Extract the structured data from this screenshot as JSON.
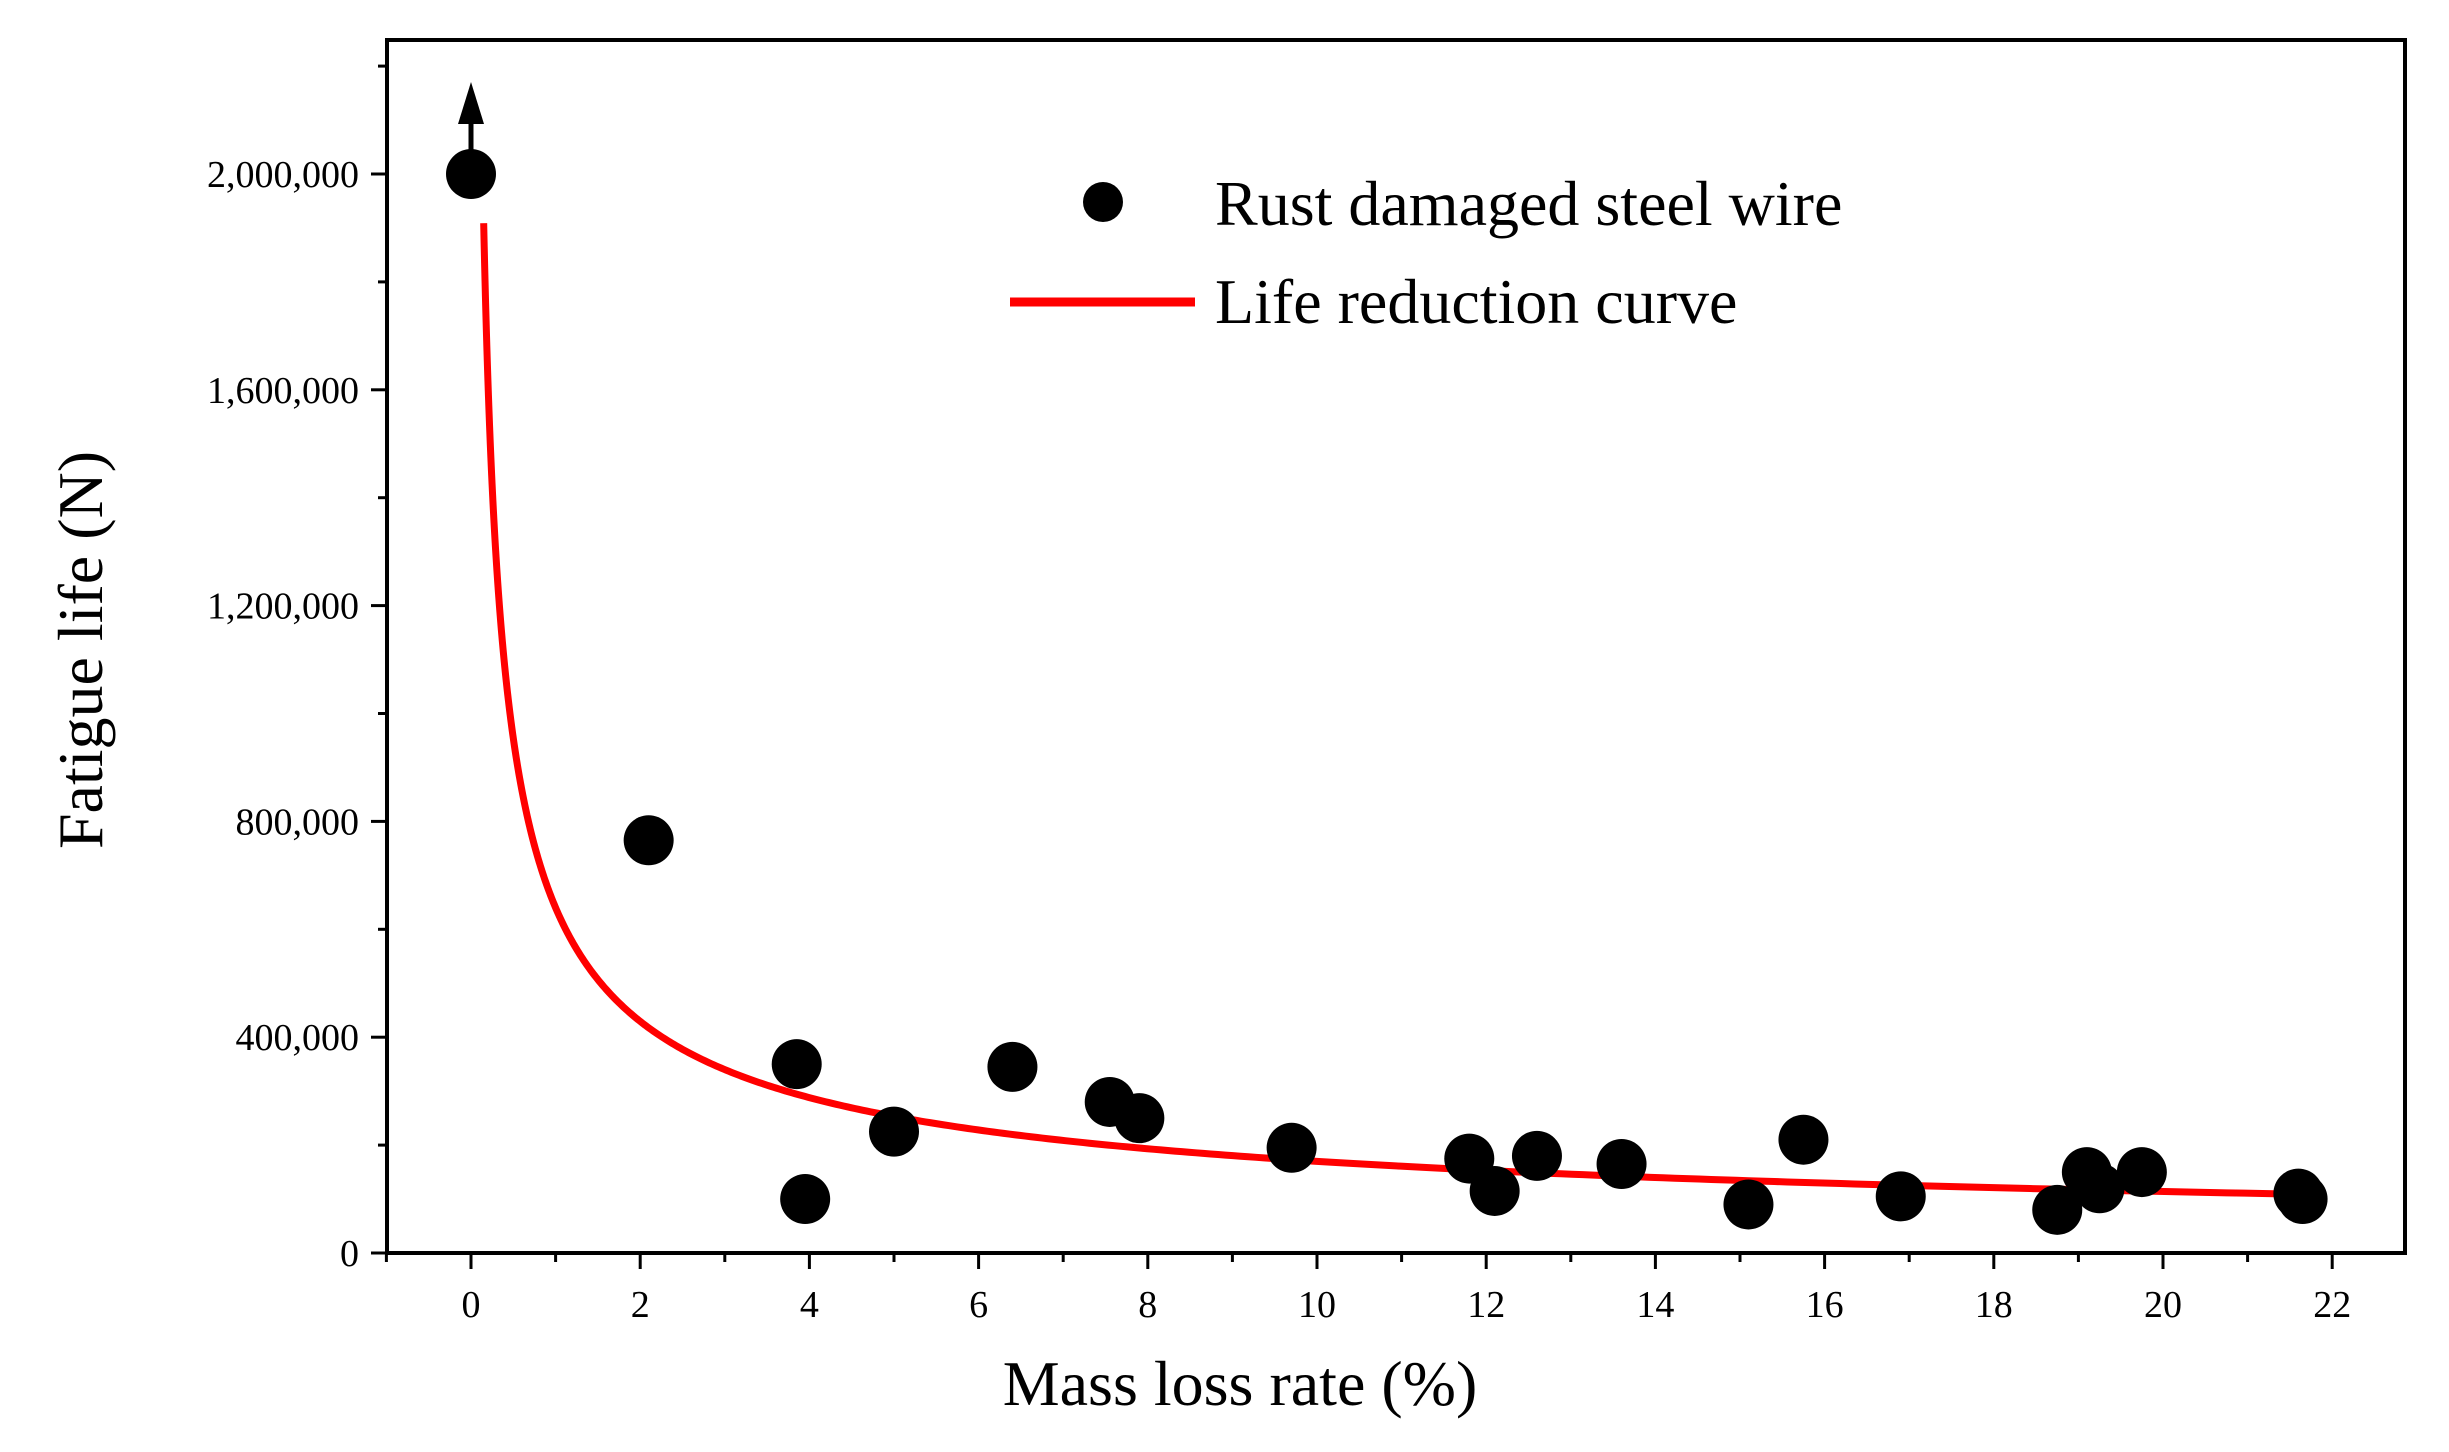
{
  "chart_data": {
    "type": "scatter",
    "title": "",
    "xlabel": "Mass loss rate (%)",
    "ylabel": "Fatigue life (N)",
    "xlim": [
      -1,
      22.5
    ],
    "ylim": [
      0,
      2250000
    ],
    "x_ticks": [
      0,
      2,
      4,
      6,
      8,
      10,
      12,
      14,
      16,
      18,
      20,
      22
    ],
    "x_tick_labels": [
      "0",
      "2",
      "4",
      "6",
      "8",
      "10",
      "12",
      "14",
      "16",
      "18",
      "20",
      "22"
    ],
    "y_ticks": [
      0,
      400000,
      800000,
      1200000,
      1600000,
      2000000
    ],
    "y_tick_labels": [
      "0",
      "400,000",
      "800,000",
      "1,200,000",
      "1,600,000",
      "2,000,000"
    ],
    "grid": false,
    "legend": {
      "position": "top-right",
      "entries": [
        "Rust damaged steel wire",
        "Life reduction curve"
      ]
    },
    "colors": {
      "points": "#000000",
      "curve": "#ff0000"
    },
    "annotations": [
      {
        "type": "arrow-up",
        "x": 0,
        "y": 2000000,
        "meaning": "run-out (did not fail)"
      }
    ],
    "series": [
      {
        "name": "Rust damaged steel wire",
        "kind": "scatter",
        "points": [
          {
            "x": 0.0,
            "y": 2000000
          },
          {
            "x": 2.1,
            "y": 765000
          },
          {
            "x": 3.85,
            "y": 350000
          },
          {
            "x": 3.95,
            "y": 100000
          },
          {
            "x": 5.0,
            "y": 225000
          },
          {
            "x": 6.4,
            "y": 345000
          },
          {
            "x": 7.55,
            "y": 280000
          },
          {
            "x": 7.9,
            "y": 250000
          },
          {
            "x": 9.7,
            "y": 195000
          },
          {
            "x": 11.8,
            "y": 175000
          },
          {
            "x": 12.1,
            "y": 115000
          },
          {
            "x": 12.6,
            "y": 180000
          },
          {
            "x": 13.6,
            "y": 165000
          },
          {
            "x": 15.1,
            "y": 90000
          },
          {
            "x": 15.75,
            "y": 210000
          },
          {
            "x": 16.9,
            "y": 105000
          },
          {
            "x": 18.75,
            "y": 80000
          },
          {
            "x": 19.1,
            "y": 150000
          },
          {
            "x": 19.25,
            "y": 120000
          },
          {
            "x": 19.75,
            "y": 150000
          },
          {
            "x": 21.6,
            "y": 110000
          },
          {
            "x": 21.65,
            "y": 100000
          }
        ]
      },
      {
        "name": "Life reduction curve",
        "kind": "line",
        "equation": "N = 640000 * x^(-0.576)",
        "coefficient": 640000,
        "exponent": -0.576,
        "x_start": 0.15,
        "x_end": 21.6
      }
    ]
  }
}
